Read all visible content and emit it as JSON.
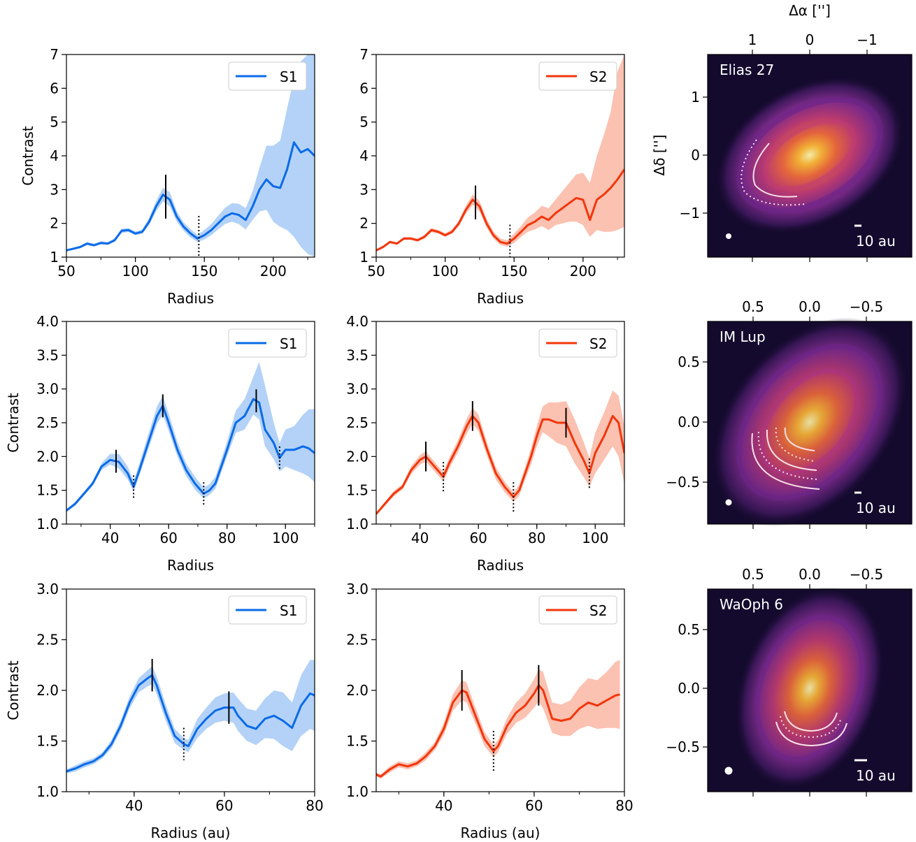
{
  "figure": {
    "ra_label": "Δα ['']",
    "dec_label": "Δδ ['']",
    "scale_label": "10 au"
  },
  "chart_data": [
    {
      "type": "line",
      "xlabel": "Radius",
      "ylabel": "Contrast",
      "xlim": [
        50,
        230
      ],
      "ylim": [
        1,
        7
      ],
      "xticks": [
        "50",
        "100",
        "150",
        "200"
      ],
      "yticks": [
        "1",
        "2",
        "3",
        "4",
        "5",
        "6",
        "7"
      ],
      "legend": "top-right",
      "series": [
        {
          "name": "S1",
          "color": "#0a6be8",
          "band_color": "#b4d2f7",
          "x": [
            50,
            55,
            60,
            65,
            70,
            75,
            80,
            85,
            90,
            95,
            100,
            105,
            110,
            115,
            120,
            125,
            130,
            135,
            140,
            145,
            150,
            155,
            160,
            165,
            170,
            175,
            180,
            185,
            190,
            195,
            200,
            205,
            210,
            215,
            220,
            225,
            230
          ],
          "y": [
            1.2,
            1.25,
            1.3,
            1.4,
            1.35,
            1.42,
            1.4,
            1.5,
            1.78,
            1.8,
            1.7,
            1.75,
            2.05,
            2.5,
            2.85,
            2.7,
            2.2,
            1.9,
            1.7,
            1.55,
            1.65,
            1.8,
            2.0,
            2.2,
            2.3,
            2.25,
            2.1,
            2.5,
            3.0,
            3.3,
            3.1,
            3.05,
            3.6,
            4.4,
            4.1,
            4.2,
            4.0
          ],
          "lower": [
            1.18,
            1.22,
            1.27,
            1.36,
            1.32,
            1.38,
            1.37,
            1.45,
            1.72,
            1.74,
            1.65,
            1.7,
            1.95,
            2.35,
            2.65,
            2.5,
            2.05,
            1.78,
            1.58,
            1.45,
            1.52,
            1.65,
            1.82,
            1.98,
            2.05,
            1.98,
            1.82,
            2.1,
            2.35,
            2.4,
            2.05,
            1.9,
            1.8,
            1.6,
            1.3,
            1.1,
            1.0
          ],
          "upper": [
            1.23,
            1.28,
            1.34,
            1.45,
            1.4,
            1.47,
            1.45,
            1.56,
            1.84,
            1.86,
            1.76,
            1.82,
            2.16,
            2.66,
            3.05,
            2.92,
            2.36,
            2.03,
            1.83,
            1.66,
            1.8,
            1.98,
            2.22,
            2.46,
            2.6,
            2.58,
            2.45,
            2.95,
            3.65,
            4.3,
            4.3,
            4.45,
            5.4,
            6.3,
            6.8,
            7.0,
            7.0
          ]
        }
      ],
      "peaks": [
        122
      ],
      "troughs": [
        146
      ]
    },
    {
      "type": "line",
      "xlabel": "Radius",
      "ylabel": "",
      "xlim": [
        50,
        230
      ],
      "ylim": [
        1,
        7
      ],
      "xticks": [
        "50",
        "100",
        "150",
        "200"
      ],
      "yticks": [
        "1",
        "2",
        "3",
        "4",
        "5",
        "6",
        "7"
      ],
      "legend": "top-right",
      "series": [
        {
          "name": "S2",
          "color": "#f2360b",
          "band_color": "#fbc1b1",
          "x": [
            50,
            55,
            60,
            65,
            70,
            75,
            80,
            85,
            90,
            95,
            100,
            105,
            110,
            115,
            120,
            125,
            130,
            135,
            140,
            145,
            150,
            155,
            160,
            165,
            170,
            175,
            180,
            185,
            190,
            195,
            200,
            205,
            210,
            215,
            220,
            225,
            230
          ],
          "y": [
            1.2,
            1.3,
            1.45,
            1.4,
            1.55,
            1.55,
            1.5,
            1.6,
            1.8,
            1.75,
            1.65,
            1.75,
            2.0,
            2.4,
            2.7,
            2.5,
            2.0,
            1.65,
            1.45,
            1.4,
            1.55,
            1.75,
            1.95,
            2.05,
            2.2,
            2.1,
            2.3,
            2.45,
            2.6,
            2.75,
            2.7,
            2.1,
            2.7,
            2.85,
            3.05,
            3.3,
            3.6
          ],
          "lower": [
            1.18,
            1.27,
            1.41,
            1.37,
            1.51,
            1.51,
            1.46,
            1.55,
            1.74,
            1.7,
            1.6,
            1.69,
            1.92,
            2.28,
            2.55,
            2.35,
            1.88,
            1.55,
            1.36,
            1.31,
            1.42,
            1.6,
            1.75,
            1.82,
            1.92,
            1.8,
            1.95,
            2.0,
            2.05,
            2.05,
            1.95,
            1.6,
            1.8,
            1.75,
            1.75,
            1.8,
            1.9
          ],
          "upper": [
            1.23,
            1.34,
            1.49,
            1.44,
            1.59,
            1.6,
            1.55,
            1.66,
            1.86,
            1.81,
            1.71,
            1.82,
            2.09,
            2.52,
            2.86,
            2.66,
            2.14,
            1.76,
            1.55,
            1.5,
            1.7,
            1.92,
            2.18,
            2.32,
            2.52,
            2.45,
            2.7,
            2.95,
            3.2,
            3.45,
            3.5,
            3.2,
            4.0,
            4.6,
            5.3,
            6.5,
            7.0
          ]
        }
      ],
      "peaks": [
        122
      ],
      "troughs": [
        147
      ]
    },
    {
      "type": "line",
      "xlabel": "Radius",
      "ylabel": "Contrast",
      "xlim": [
        25,
        110
      ],
      "ylim": [
        1.0,
        4.0
      ],
      "xticks": [
        "40",
        "60",
        "80",
        "100"
      ],
      "yticks": [
        "1.0",
        "1.5",
        "2.0",
        "2.5",
        "3.0",
        "3.5",
        "4.0"
      ],
      "legend": "top-right",
      "series": [
        {
          "name": "S1",
          "color": "#0a6be8",
          "band_color": "#b4d2f7",
          "x": [
            25,
            28,
            31,
            34,
            37,
            40,
            43,
            46,
            48,
            50,
            53,
            56,
            58,
            60,
            63,
            66,
            69,
            72,
            74,
            76,
            78,
            80,
            83,
            86,
            89,
            91,
            93,
            96,
            98,
            100,
            103,
            106,
            108,
            110
          ],
          "y": [
            1.2,
            1.3,
            1.45,
            1.6,
            1.85,
            1.95,
            1.92,
            1.75,
            1.55,
            1.8,
            2.2,
            2.6,
            2.75,
            2.5,
            2.1,
            1.8,
            1.6,
            1.45,
            1.5,
            1.6,
            1.85,
            2.1,
            2.5,
            2.6,
            2.85,
            2.8,
            2.4,
            2.2,
            1.98,
            2.1,
            2.1,
            2.15,
            2.12,
            2.05
          ],
          "lower": [
            1.18,
            1.27,
            1.42,
            1.57,
            1.8,
            1.88,
            1.82,
            1.66,
            1.48,
            1.72,
            2.1,
            2.48,
            2.62,
            2.38,
            2.0,
            1.71,
            1.51,
            1.38,
            1.43,
            1.52,
            1.76,
            2.0,
            2.35,
            2.4,
            2.62,
            2.55,
            2.15,
            1.96,
            1.78,
            1.85,
            1.8,
            1.75,
            1.7,
            1.62
          ],
          "upper": [
            1.22,
            1.33,
            1.48,
            1.64,
            1.9,
            2.04,
            2.04,
            1.85,
            1.64,
            1.9,
            2.32,
            2.74,
            2.9,
            2.64,
            2.22,
            1.9,
            1.7,
            1.54,
            1.59,
            1.7,
            1.96,
            2.22,
            2.68,
            2.85,
            3.18,
            3.4,
            3.05,
            2.5,
            2.2,
            2.4,
            2.45,
            2.62,
            2.7,
            2.7
          ]
        }
      ],
      "peaks": [
        42,
        58,
        90
      ],
      "troughs": [
        48,
        72,
        98
      ]
    },
    {
      "type": "line",
      "xlabel": "Radius",
      "ylabel": "",
      "xlim": [
        25,
        110
      ],
      "ylim": [
        1.0,
        4.0
      ],
      "xticks": [
        "40",
        "60",
        "80",
        "100"
      ],
      "yticks": [
        "1.0",
        "1.5",
        "2.0",
        "2.5",
        "3.0",
        "3.5",
        "4.0"
      ],
      "legend": "top-right",
      "series": [
        {
          "name": "S2",
          "color": "#f2360b",
          "band_color": "#fbc1b1",
          "x": [
            25,
            28,
            31,
            34,
            37,
            40,
            42,
            45,
            48,
            50,
            53,
            56,
            58,
            60,
            63,
            66,
            69,
            72,
            74,
            76,
            78,
            80,
            82,
            84,
            87,
            90,
            93,
            96,
            98,
            100,
            103,
            106,
            108,
            110
          ],
          "y": [
            1.15,
            1.3,
            1.45,
            1.55,
            1.8,
            1.95,
            2.0,
            1.85,
            1.7,
            1.9,
            2.15,
            2.45,
            2.6,
            2.5,
            2.1,
            1.75,
            1.55,
            1.4,
            1.5,
            1.75,
            2.0,
            2.3,
            2.55,
            2.55,
            2.5,
            2.5,
            2.2,
            1.95,
            1.75,
            2.05,
            2.3,
            2.6,
            2.5,
            2.05
          ],
          "lower": [
            1.13,
            1.27,
            1.41,
            1.51,
            1.74,
            1.88,
            1.92,
            1.78,
            1.63,
            1.82,
            2.06,
            2.34,
            2.48,
            2.38,
            2.0,
            1.66,
            1.47,
            1.33,
            1.42,
            1.66,
            1.88,
            2.15,
            2.36,
            2.3,
            2.2,
            2.15,
            1.9,
            1.7,
            1.55,
            1.75,
            1.95,
            2.15,
            2.0,
            1.6
          ],
          "upper": [
            1.17,
            1.33,
            1.49,
            1.59,
            1.86,
            2.02,
            2.08,
            1.92,
            1.77,
            1.98,
            2.24,
            2.56,
            2.72,
            2.62,
            2.2,
            1.84,
            1.63,
            1.47,
            1.58,
            1.84,
            2.12,
            2.45,
            2.74,
            2.8,
            2.8,
            2.82,
            2.55,
            2.22,
            1.98,
            2.35,
            2.65,
            2.98,
            2.9,
            2.45
          ]
        }
      ],
      "peaks": [
        42,
        58,
        90
      ],
      "troughs": [
        48,
        72,
        98
      ]
    },
    {
      "type": "line",
      "xlabel": "Radius (au)",
      "ylabel": "Contrast",
      "xlim": [
        25,
        80
      ],
      "ylim": [
        1.0,
        3.0
      ],
      "xticks": [
        "40",
        "60",
        "80"
      ],
      "yticks": [
        "1.0",
        "1.5",
        "2.0",
        "2.5",
        "3.0"
      ],
      "legend": "top-right",
      "series": [
        {
          "name": "S1",
          "color": "#0a6be8",
          "band_color": "#b4d2f7",
          "x": [
            25,
            27,
            29,
            31,
            33,
            35,
            37,
            39,
            41,
            43,
            44,
            45,
            47,
            49,
            51,
            52,
            54,
            56,
            58,
            60,
            62,
            63,
            65,
            67,
            69,
            71,
            73,
            75,
            77,
            79,
            80
          ],
          "y": [
            1.2,
            1.23,
            1.27,
            1.3,
            1.36,
            1.47,
            1.65,
            1.88,
            2.05,
            2.12,
            2.15,
            2.05,
            1.78,
            1.55,
            1.47,
            1.45,
            1.62,
            1.72,
            1.8,
            1.83,
            1.83,
            1.75,
            1.65,
            1.62,
            1.72,
            1.75,
            1.7,
            1.63,
            1.85,
            1.97,
            1.95
          ],
          "lower": [
            1.18,
            1.2,
            1.24,
            1.27,
            1.33,
            1.43,
            1.6,
            1.82,
            1.98,
            2.04,
            2.06,
            1.96,
            1.7,
            1.48,
            1.41,
            1.39,
            1.53,
            1.62,
            1.68,
            1.7,
            1.68,
            1.6,
            1.5,
            1.46,
            1.53,
            1.52,
            1.45,
            1.4,
            1.55,
            1.62,
            1.6
          ],
          "upper": [
            1.22,
            1.26,
            1.3,
            1.33,
            1.39,
            1.51,
            1.7,
            1.94,
            2.12,
            2.2,
            2.24,
            2.14,
            1.86,
            1.62,
            1.53,
            1.51,
            1.72,
            1.83,
            1.93,
            1.97,
            1.98,
            1.92,
            1.82,
            1.8,
            1.92,
            2.0,
            1.98,
            1.88,
            2.15,
            2.3,
            2.3
          ]
        }
      ],
      "peaks": [
        44,
        61
      ],
      "troughs": [
        51
      ]
    },
    {
      "type": "line",
      "xlabel": "Radius (au)",
      "ylabel": "",
      "xlim": [
        25,
        80
      ],
      "ylim": [
        1.0,
        3.0
      ],
      "xticks": [
        "40",
        "60",
        "80"
      ],
      "yticks": [
        "1.0",
        "1.5",
        "2.0",
        "2.5",
        "3.0"
      ],
      "legend": "top-right",
      "series": [
        {
          "name": "S2",
          "color": "#f2360b",
          "band_color": "#fbc1b1",
          "x": [
            25,
            26,
            28,
            30,
            32,
            34,
            36,
            38,
            40,
            42,
            44,
            45,
            47,
            49,
            51,
            52,
            54,
            56,
            58,
            60,
            61,
            62,
            64,
            66,
            68,
            70,
            72,
            74,
            76,
            78,
            79
          ],
          "y": [
            1.17,
            1.15,
            1.22,
            1.27,
            1.25,
            1.28,
            1.35,
            1.45,
            1.62,
            1.88,
            2.0,
            1.98,
            1.75,
            1.52,
            1.4,
            1.45,
            1.65,
            1.78,
            1.85,
            1.97,
            2.05,
            2.0,
            1.72,
            1.7,
            1.72,
            1.82,
            1.88,
            1.85,
            1.9,
            1.95,
            1.96
          ],
          "lower": [
            1.15,
            1.13,
            1.19,
            1.24,
            1.22,
            1.25,
            1.31,
            1.41,
            1.56,
            1.8,
            1.9,
            1.88,
            1.67,
            1.45,
            1.34,
            1.39,
            1.57,
            1.68,
            1.73,
            1.83,
            1.89,
            1.82,
            1.58,
            1.55,
            1.55,
            1.62,
            1.65,
            1.62,
            1.63,
            1.63,
            1.62
          ],
          "upper": [
            1.19,
            1.17,
            1.25,
            1.3,
            1.28,
            1.31,
            1.39,
            1.49,
            1.68,
            1.96,
            2.1,
            2.08,
            1.83,
            1.59,
            1.46,
            1.51,
            1.73,
            1.88,
            1.97,
            2.11,
            2.21,
            2.18,
            1.88,
            1.86,
            1.9,
            2.03,
            2.12,
            2.1,
            2.18,
            2.28,
            2.3
          ]
        }
      ],
      "peaks": [
        44,
        61
      ],
      "troughs": [
        51
      ]
    }
  ],
  "disks": [
    {
      "name": "Elias 27",
      "x_ticks": [
        "1",
        "0",
        "−1"
      ],
      "y_ticks": [
        "1",
        "0",
        "−1"
      ],
      "colors": [
        "#fff6b0",
        "#fdb836",
        "#ef6a3c",
        "#c13c73",
        "#7e2b8c",
        "#3a1758",
        "#140a2d"
      ]
    },
    {
      "name": "IM Lup",
      "x_ticks": [
        "0.5",
        "0.0",
        "−0.5"
      ],
      "y_ticks": [
        "0.5",
        "0.0",
        "−0.5"
      ],
      "colors": [
        "#fff6b0",
        "#fdb836",
        "#ef6a3c",
        "#c13c73",
        "#7e2b8c",
        "#3a1758",
        "#140a2d"
      ]
    },
    {
      "name": "WaOph 6",
      "x_ticks": [
        "0.5",
        "0.0",
        "−0.5"
      ],
      "y_ticks": [
        "0.5",
        "0.0",
        "−0.5"
      ],
      "colors": [
        "#fff6b0",
        "#fdb836",
        "#ef6a3c",
        "#c13c73",
        "#7e2b8c",
        "#3a1758",
        "#140a2d"
      ]
    }
  ]
}
